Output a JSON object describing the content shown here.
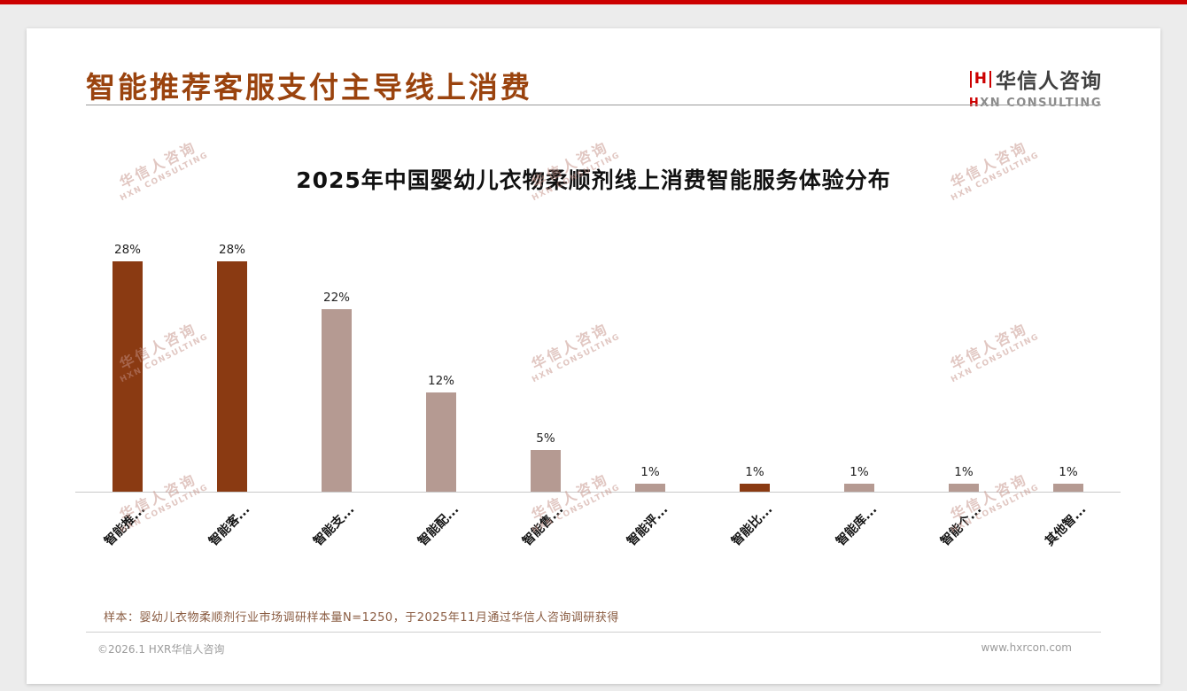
{
  "colors": {
    "accent_red": "#cc0000",
    "title_brown": "#9a430e",
    "bar_dark": "#8a3a12",
    "bar_light": "#b59a92"
  },
  "header": {
    "title": "智能推荐客服支付主导线上消费",
    "logo": {
      "mark": "H",
      "name": "华信人咨询",
      "sub_first": "H",
      "sub_rest": "XN CONSULTING"
    }
  },
  "watermark": {
    "line1": "华信人咨询",
    "line2": "HXN CONSULTING"
  },
  "chart_data": {
    "type": "bar",
    "title": "2025年中国婴幼儿衣物柔顺剂线上消费智能服务体验分布",
    "categories": [
      "智能推...",
      "智能客...",
      "智能支...",
      "智能配...",
      "智能售...",
      "智能评...",
      "智能比...",
      "智能库...",
      "智能个...",
      "其他智..."
    ],
    "values": [
      28,
      28,
      22,
      12,
      5,
      1,
      1,
      1,
      1,
      1
    ],
    "value_labels": [
      "28%",
      "28%",
      "22%",
      "12%",
      "5%",
      "1%",
      "1%",
      "1%",
      "1%",
      "1%"
    ],
    "bar_colors": [
      "#8a3a12",
      "#8a3a12",
      "#b59a92",
      "#b59a92",
      "#b59a92",
      "#b59a92",
      "#8a3a12",
      "#b59a92",
      "#b59a92",
      "#b59a92"
    ],
    "unit": "%",
    "xlabel": "",
    "ylabel": "",
    "ylim": [
      0,
      30
    ],
    "grid": false,
    "legend": false
  },
  "footnote": "样本：婴幼儿衣物柔顺剂行业市场调研样本量N=1250，于2025年11月通过华信人咨询调研获得",
  "footer": {
    "left": "©2026.1 HXR华信人咨询",
    "right": "www.hxrcon.com"
  }
}
